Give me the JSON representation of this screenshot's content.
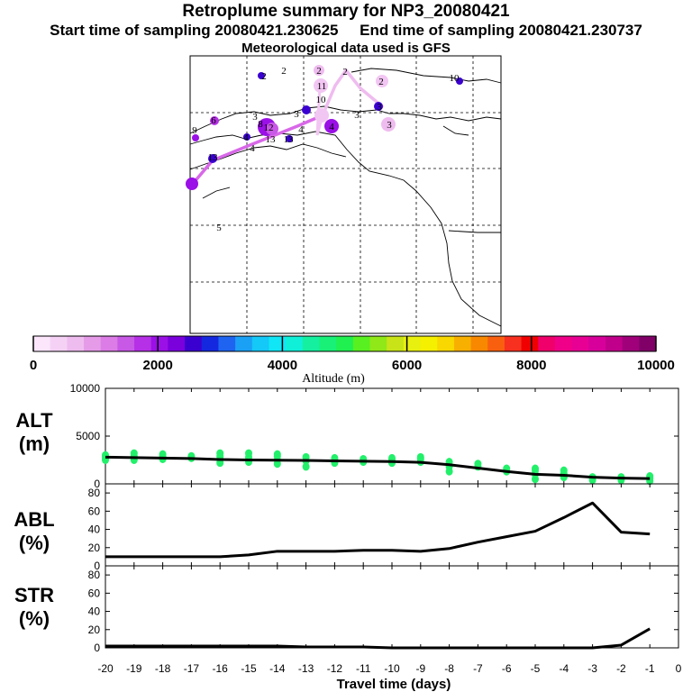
{
  "header": {
    "title": "Retroplume summary for NP3_20080421",
    "start_label": "Start time of sampling 20080421.230625",
    "end_label": "End time of sampling 20080421.230737",
    "met_label": "Meteorological data used is GFS"
  },
  "colorbar": {
    "label": "Altitude (m)",
    "ticks": [
      "0",
      "2000",
      "4000",
      "6000",
      "8000",
      "10000"
    ],
    "colors": [
      "#fbe6fb",
      "#f5d2f5",
      "#efbcef",
      "#e69be9",
      "#dc7ce6",
      "#c858e6",
      "#b530e6",
      "#9a10e6",
      "#7a00dc",
      "#3a00d0",
      "#1428e0",
      "#1e64f0",
      "#1aa0f5",
      "#14c8f8",
      "#10e6f5",
      "#10f0d8",
      "#14f0a0",
      "#18f078",
      "#20f050",
      "#58f020",
      "#90e818",
      "#c8e418",
      "#e8f010",
      "#f5f000",
      "#f8d800",
      "#f8b000",
      "#f88800",
      "#f86010",
      "#f83020",
      "#f00000",
      "#f0006a",
      "#f00088",
      "#e80094",
      "#d8009a",
      "#c0008a",
      "#a0007a",
      "#800068"
    ]
  },
  "map": {
    "labels": [
      "2",
      "2",
      "2",
      "2",
      "10",
      "11",
      "4",
      "3",
      "3",
      "3",
      "10",
      "12",
      "3",
      "3",
      "4",
      "13",
      "4",
      "4",
      "13",
      "13",
      "9",
      "8",
      "6",
      "2",
      "5"
    ]
  },
  "chart_data": [
    {
      "type": "line",
      "name": "ALT",
      "title": "ALT",
      "ylabel": "(m)",
      "xlabel": "Travel time (days)",
      "x": [
        -20,
        -19,
        -18,
        -17,
        -16,
        -15,
        -14,
        -13,
        -12,
        -11,
        -10,
        -9,
        -8,
        -7,
        -6,
        -5,
        -4,
        -3,
        -2,
        -1
      ],
      "values": [
        2800,
        2750,
        2700,
        2650,
        2550,
        2500,
        2480,
        2450,
        2400,
        2370,
        2330,
        2250,
        2000,
        1650,
        1300,
        1000,
        900,
        700,
        600,
        550
      ],
      "ylim": [
        0,
        10000
      ],
      "yticks": [
        0,
        5000,
        10000
      ],
      "scatter_color": "#22f06a",
      "scatter": [
        [
          -20,
          [
            2900,
            2700,
            2500,
            3000
          ]
        ],
        [
          -19,
          [
            2500,
            2900,
            3200
          ]
        ],
        [
          -18,
          [
            2600,
            2900,
            3100
          ]
        ],
        [
          -17,
          [
            2700,
            2900
          ]
        ],
        [
          -16,
          [
            2200,
            2600,
            2900,
            3200
          ]
        ],
        [
          -15,
          [
            2300,
            2800,
            3200
          ]
        ],
        [
          -14,
          [
            2100,
            2500,
            2900,
            3100
          ]
        ],
        [
          -13,
          [
            1800,
            2400,
            2800
          ]
        ],
        [
          -12,
          [
            2200,
            2500,
            2700
          ]
        ],
        [
          -11,
          [
            2300,
            2600
          ]
        ],
        [
          -10,
          [
            2200,
            2500,
            2700
          ]
        ],
        [
          -9,
          [
            2300,
            2600,
            2800
          ]
        ],
        [
          -8,
          [
            1300,
            1800,
            2300
          ]
        ],
        [
          -7,
          [
            1800,
            2100
          ]
        ],
        [
          -6,
          [
            1300,
            1600
          ]
        ],
        [
          -5,
          [
            500,
            1000,
            1400,
            1600
          ]
        ],
        [
          -4,
          [
            700,
            1100,
            1400
          ]
        ],
        [
          -3,
          [
            400,
            700
          ]
        ],
        [
          -2,
          [
            400,
            700
          ]
        ],
        [
          -1,
          [
            300,
            600,
            800
          ]
        ]
      ]
    },
    {
      "type": "line",
      "name": "ABL",
      "title": "ABL",
      "ylabel": "(%)",
      "x": [
        -20,
        -19,
        -18,
        -17,
        -16,
        -15,
        -14,
        -13,
        -12,
        -11,
        -10,
        -9,
        -8,
        -7,
        -6,
        -5,
        -4,
        -3,
        -2,
        -1
      ],
      "values": [
        10,
        10,
        10,
        10,
        10,
        12,
        16,
        16,
        16,
        17,
        17,
        16,
        19,
        26,
        32,
        38,
        53,
        69,
        37,
        35
      ],
      "ylim": [
        0,
        90
      ],
      "yticks": [
        0,
        20,
        40,
        60,
        80
      ]
    },
    {
      "type": "line",
      "name": "STR",
      "title": "STR",
      "ylabel": "(%)",
      "x": [
        -20,
        -19,
        -18,
        -17,
        -16,
        -15,
        -14,
        -13,
        -12,
        -11,
        -10,
        -9,
        -8,
        -7,
        -6,
        -5,
        -4,
        -3,
        -2,
        -1
      ],
      "values": [
        2,
        2,
        2,
        2,
        2,
        2,
        2,
        1,
        1,
        1,
        0,
        0,
        0,
        0,
        0,
        0,
        0,
        0,
        3,
        21
      ],
      "ylim": [
        0,
        90
      ],
      "yticks": [
        0,
        20,
        40,
        60,
        80
      ],
      "xticks": [
        "-20",
        "-19",
        "-18",
        "-17",
        "-16",
        "-15",
        "-14",
        "-13",
        "-12",
        "-11",
        "-10",
        "-9",
        "-8",
        "-7",
        "-6",
        "-5",
        "-4",
        "-3",
        "-2",
        "-1",
        "0"
      ]
    }
  ]
}
